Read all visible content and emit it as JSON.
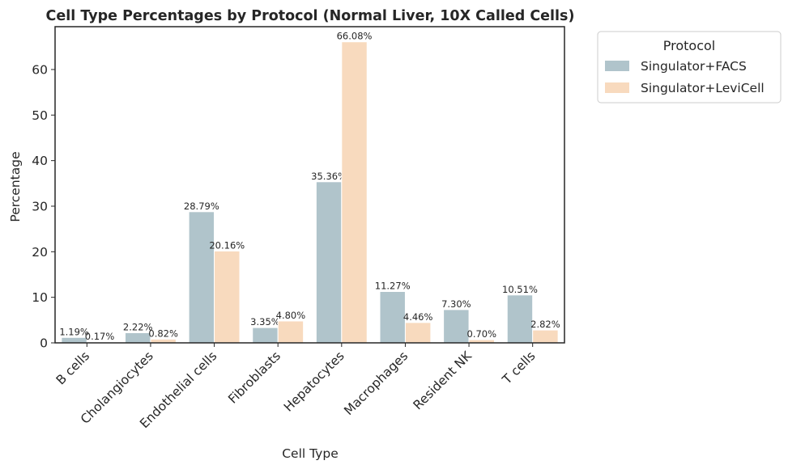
{
  "chart_data": {
    "type": "bar",
    "title": "Cell Type Percentages by Protocol (Normal Liver, 10X Called Cells)",
    "xlabel": "Cell Type",
    "ylabel": "Percentage",
    "ylim": [
      0,
      69.4
    ],
    "yticks": [
      0,
      10,
      20,
      30,
      40,
      50,
      60
    ],
    "grid": false,
    "legend": {
      "title": "Protocol",
      "placement": "outside-top-right"
    },
    "categories": [
      "B cells",
      "Cholangiocytes",
      "Endothelial cells",
      "Fibroblasts",
      "Hepatocytes",
      "Macrophages",
      "Resident NK",
      "T cells"
    ],
    "series": [
      {
        "name": "Singulator+FACS",
        "color": "#b0c4cb",
        "values": [
          1.19,
          2.22,
          28.79,
          3.35,
          35.36,
          11.27,
          7.3,
          10.51
        ],
        "labels": [
          "1.19%",
          "2.22%",
          "28.79%",
          "3.35%",
          "35.36%",
          "11.27%",
          "7.30%",
          "10.51%"
        ]
      },
      {
        "name": "Singulator+LeviCell",
        "color": "#f8dabe",
        "values": [
          0.17,
          0.82,
          20.16,
          4.8,
          66.08,
          4.46,
          0.7,
          2.82
        ],
        "labels": [
          "0.17%",
          "0.82%",
          "20.16%",
          "4.80%",
          "66.08%",
          "4.46%",
          "0.70%",
          "2.82%"
        ]
      }
    ]
  }
}
